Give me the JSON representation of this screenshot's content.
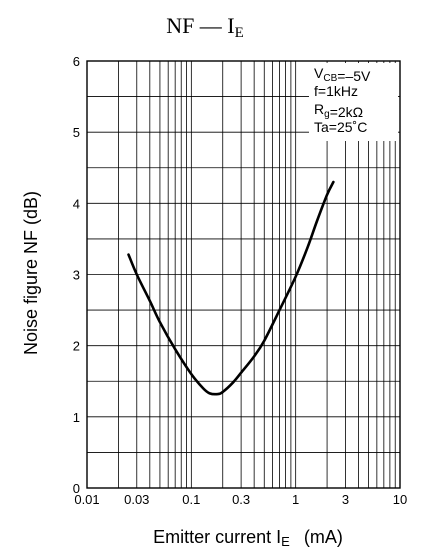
{
  "chart_data": {
    "type": "line",
    "title": {
      "main": "NF — I",
      "sub": "E"
    },
    "xlabel": {
      "text": "Emitter current  I",
      "sub": "E",
      "unit": "(mA)"
    },
    "ylabel": "Noise figure  NF  (dB)",
    "x_scale": "log",
    "xlim": [
      0.01,
      10
    ],
    "ylim": [
      0,
      6
    ],
    "x_tick_labels": [
      "0.01",
      "0.03",
      "0.1",
      "0.3",
      "1",
      "3",
      "10"
    ],
    "x_tick_values": [
      0.01,
      0.03,
      0.1,
      0.3,
      1,
      3,
      10
    ],
    "y_tick_labels": [
      "0",
      "1",
      "2",
      "3",
      "4",
      "5",
      "6"
    ],
    "y_tick_values": [
      0,
      1,
      2,
      3,
      4,
      5,
      6
    ],
    "grid": true,
    "annotations": [
      {
        "parts": [
          {
            "t": "V"
          },
          {
            "t": "CB",
            "sub": true
          },
          {
            "t": "=–5V"
          }
        ]
      },
      {
        "parts": [
          {
            "t": "f=1kHz"
          }
        ]
      },
      {
        "parts": [
          {
            "t": "R"
          },
          {
            "t": "g",
            "sub": true
          },
          {
            "t": "=2kΩ"
          }
        ]
      },
      {
        "parts": [
          {
            "t": "Ta=25˚C"
          }
        ]
      }
    ],
    "annotation_position": "top-right",
    "series": [
      {
        "x": [
          0.025,
          0.03,
          0.04,
          0.05,
          0.07,
          0.1,
          0.13,
          0.15,
          0.18,
          0.2,
          0.25,
          0.3,
          0.4,
          0.5,
          0.7,
          1.0,
          1.3,
          1.6,
          2.0,
          2.3
        ],
        "y": [
          3.28,
          3.0,
          2.63,
          2.33,
          1.95,
          1.6,
          1.4,
          1.33,
          1.32,
          1.35,
          1.48,
          1.62,
          1.85,
          2.07,
          2.5,
          2.97,
          3.38,
          3.75,
          4.12,
          4.3
        ]
      }
    ]
  }
}
